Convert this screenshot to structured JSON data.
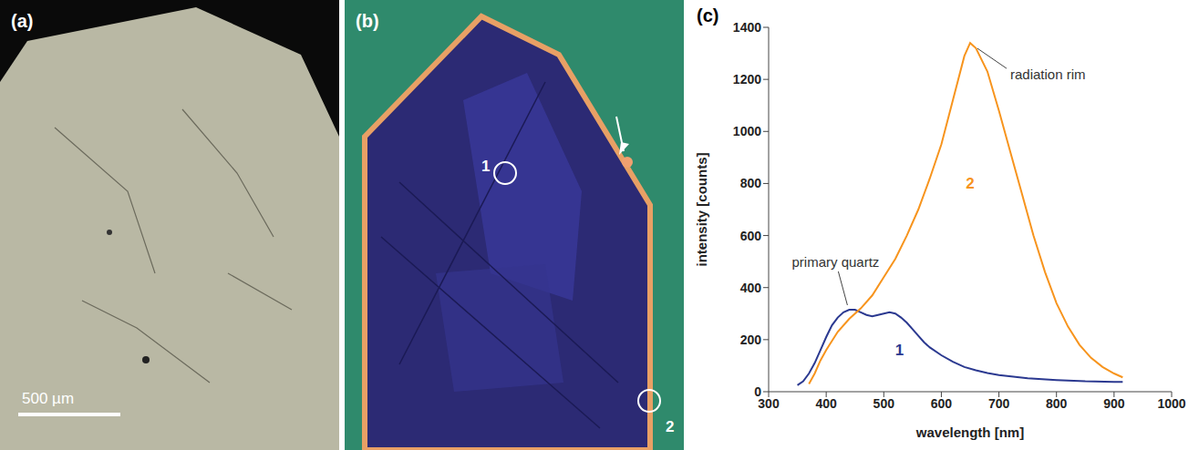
{
  "panels": {
    "a": {
      "letter": "(a)",
      "scale_bar": "500 µm"
    },
    "b": {
      "letter": "(b)",
      "spots": [
        "1",
        "2"
      ]
    }
  },
  "chart_data": {
    "type": "line",
    "letter": "(c)",
    "x_label": "wavelength [nm]",
    "y_label": "intensity [counts]",
    "xlim": [
      300,
      1000
    ],
    "xticks": [
      300,
      400,
      500,
      600,
      700,
      800,
      900,
      1000
    ],
    "ylim": [
      0,
      1400
    ],
    "yticks": [
      0,
      200,
      400,
      600,
      800,
      1000,
      1200,
      1400
    ],
    "grid": false,
    "series": [
      {
        "name": "primary quartz",
        "label": "1",
        "color": "#2b3990",
        "x": [
          350,
          360,
          370,
          380,
          390,
          400,
          410,
          420,
          430,
          440,
          450,
          460,
          470,
          480,
          490,
          500,
          510,
          520,
          530,
          540,
          550,
          560,
          570,
          580,
          600,
          620,
          640,
          660,
          680,
          700,
          750,
          800,
          850,
          900,
          915
        ],
        "values": [
          25,
          40,
          70,
          110,
          160,
          210,
          255,
          285,
          305,
          315,
          315,
          305,
          295,
          290,
          295,
          300,
          305,
          300,
          285,
          265,
          240,
          215,
          190,
          170,
          140,
          115,
          95,
          82,
          72,
          64,
          52,
          45,
          40,
          38,
          38
        ]
      },
      {
        "name": "radiation rim",
        "label": "2",
        "color": "#f7941d",
        "x": [
          370,
          380,
          390,
          400,
          420,
          440,
          460,
          480,
          500,
          520,
          540,
          560,
          580,
          600,
          620,
          640,
          650,
          660,
          680,
          700,
          720,
          740,
          760,
          780,
          800,
          820,
          840,
          860,
          880,
          900,
          915
        ],
        "values": [
          30,
          70,
          120,
          160,
          230,
          280,
          320,
          370,
          440,
          510,
          600,
          700,
          820,
          950,
          1120,
          1290,
          1340,
          1320,
          1230,
          1080,
          920,
          760,
          600,
          460,
          340,
          250,
          180,
          130,
          95,
          70,
          55
        ]
      }
    ]
  }
}
